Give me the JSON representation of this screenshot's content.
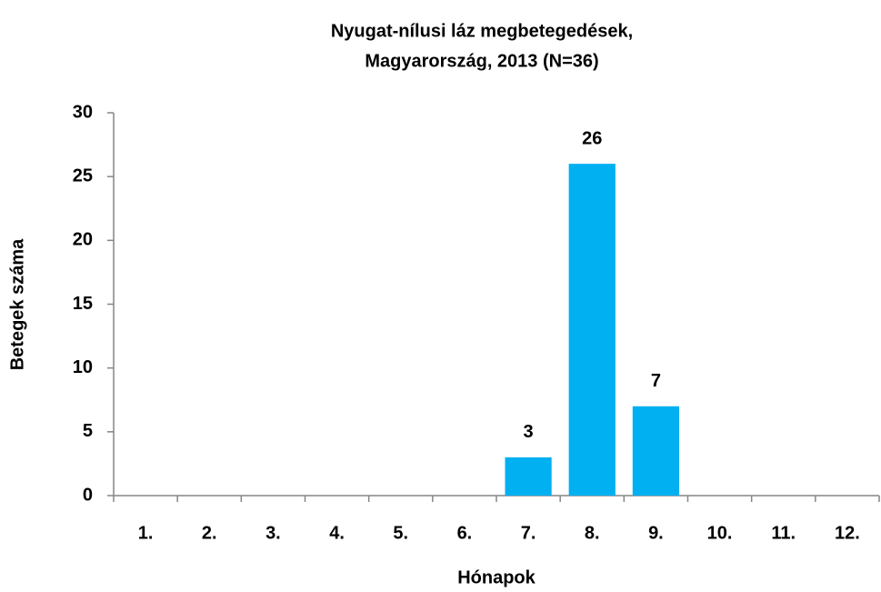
{
  "chart_data": {
    "type": "bar",
    "title": [
      "Nyugat-nílusi láz megbetegedések,",
      "Magyarország, 2013 (N=36)"
    ],
    "x_label": "Hónapok",
    "y_label": "Betegek száma",
    "categories": [
      "1.",
      "2.",
      "3.",
      "4.",
      "5.",
      "6.",
      "7.",
      "8.",
      "9.",
      "10.",
      "11.",
      "12."
    ],
    "values": [
      0,
      0,
      0,
      0,
      0,
      0,
      3,
      26,
      7,
      0,
      0,
      0
    ],
    "color": "#00b0f0",
    "ylim": [
      0,
      30
    ],
    "yticks": [
      0,
      5,
      10,
      15,
      20,
      25,
      30
    ],
    "grid": false
  }
}
